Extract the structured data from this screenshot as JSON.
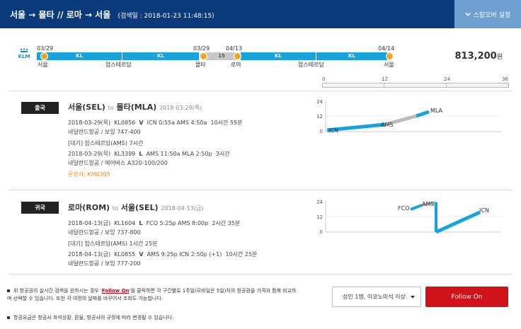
{
  "header": {
    "route": "서울 → 몰타 // 로마 → 서울",
    "search_date": "(검색일 : 2018-01-23 11:48:15)",
    "stopover_label": "스탑오버 설정"
  },
  "summary": {
    "airline_logo_text": "KLM",
    "dates": [
      "03/29",
      "03/29",
      "04/13",
      "04/14"
    ],
    "cities": [
      "서울",
      "암스테르담",
      "몰타",
      "로마",
      "암스테르담",
      "서울"
    ],
    "segment_labels": [
      "KL",
      "KL",
      "KL",
      "KL"
    ],
    "stay_days": "15",
    "price": "813,200",
    "price_unit": "원",
    "scale_labels": [
      "0",
      "12",
      "24",
      "36"
    ]
  },
  "outbound": {
    "badge": "출국",
    "origin": "서울(SEL)",
    "to": "to",
    "destination": "몰타(MLA)",
    "date": "2018-03-29(목)",
    "seg1_date": "2018-03-29(목)",
    "seg1_flight": "KL0856",
    "seg1_class": "V",
    "seg1_times": "ICN 0:55a AMS 4:50a",
    "seg1_duration": "10시간 55분",
    "seg1_aircraft": "네덜란드항공 / 보잉 747-400",
    "layover": "[대기] 암스테르담(AMS)   7시간",
    "seg2_date": "2018-03-29(목)",
    "seg2_flight": "KL3399",
    "seg2_class": "L",
    "seg2_times": "AMS 11:50a MLA 2:50p",
    "seg2_duration": "3시간",
    "seg2_aircraft": "네덜란드항공 / 에어버스 A320-100/200",
    "operator": "운항사: KM0395",
    "chart_labels": {
      "y_top": "24",
      "y_mid": "12",
      "y_bot": "0",
      "p1": "ICN",
      "p2": "AMS",
      "p3": "MLA"
    }
  },
  "inbound": {
    "badge": "귀국",
    "origin": "로마(ROM)",
    "to": "to",
    "destination": "서울(SEL)",
    "date": "2018-04-13(금)",
    "seg1_date": "2018-04-13(금)",
    "seg1_flight": "KL1604",
    "seg1_class": "L",
    "seg1_times": "FCO 5:25p AMS 8:00p",
    "seg1_duration": "2시간 35분",
    "seg1_aircraft": "네덜란드항공 / 보잉 737-800",
    "layover": "[대기] 암스테르담(AMS)   1시간 25분",
    "seg2_date": "2018-04-13(금)",
    "seg2_flight": "KL0855",
    "seg2_class": "V",
    "seg2_times": "AMS 9:25p ICN 2:50p (+1)",
    "seg2_duration": "10시간 25분",
    "seg2_aircraft": "네덜란드항공 / 보잉 777-200",
    "chart_labels": {
      "y_top": "24",
      "y_mid": "12",
      "y_bot": "0",
      "p1": "FCO",
      "p2": "AMS",
      "p3": "ICN"
    }
  },
  "footer": {
    "note1_pre": "위 항공권의 실시간 검색을 원하시는 경우 '",
    "note1_link": "Follow On",
    "note1_post": "'을 클릭하면 각 구간별로 1주일(모바일은 5일)치의 항공권을 가격과 함께 비교하며 선택할 수 있습니다. 또한 각 여정의 날짜를 바꾸어서 조회도 가능합니다.",
    "note2": "항공요금은 항공사 좌석상황, 환율, 항공사의 규정에 따라 변경될 수 있습니다.",
    "pax_select": "성인 1명, 이코노미석 이상",
    "follow_button": "Follow On"
  },
  "colors": {
    "header_bg": "#0a3a7a",
    "stopover_bg": "#6f9fd1",
    "route_blue": "#16a3de",
    "dot_orange": "#f5a623",
    "follow_red": "#d0121b"
  }
}
